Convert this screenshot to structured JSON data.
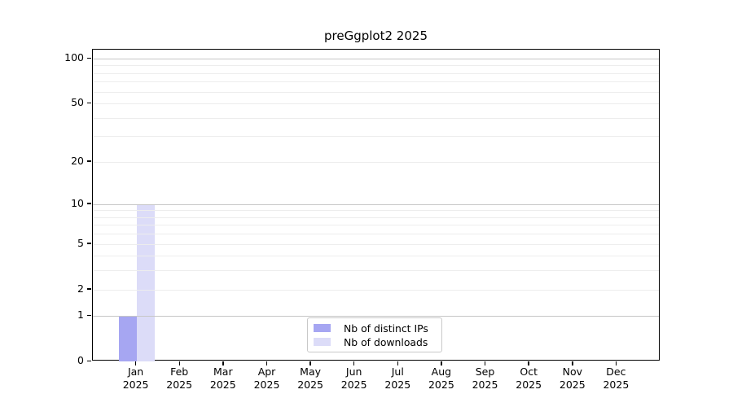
{
  "chart_data": {
    "type": "bar",
    "title": "preGgplot2 2025",
    "categories": [
      "Jan 2025",
      "Feb 2025",
      "Mar 2025",
      "Apr 2025",
      "May 2025",
      "Jun 2025",
      "Jul 2025",
      "Aug 2025",
      "Sep 2025",
      "Oct 2025",
      "Nov 2025",
      "Dec 2025"
    ],
    "series": [
      {
        "name": "Nb of distinct IPs",
        "color": "#a6a6f2",
        "values": [
          1,
          0,
          0,
          0,
          0,
          0,
          0,
          0,
          0,
          0,
          0,
          0
        ]
      },
      {
        "name": "Nb of downloads",
        "color": "#dcdcf8",
        "values": [
          10,
          0,
          0,
          0,
          0,
          0,
          0,
          0,
          0,
          0,
          0,
          0
        ]
      }
    ],
    "xlabel": "",
    "ylabel": "",
    "yticks": [
      0,
      1,
      2,
      5,
      10,
      20,
      50,
      100
    ],
    "ylim": [
      0,
      115
    ],
    "scale": "log1p",
    "grid": true,
    "gridlines": {
      "major": [
        1,
        10,
        100
      ],
      "minor": [
        2,
        3,
        4,
        5,
        6,
        7,
        8,
        9,
        20,
        30,
        40,
        50,
        60,
        70,
        80,
        90
      ]
    },
    "legend_position": "lower center"
  },
  "colors": {
    "background": "#ffffff",
    "spine": "#000000",
    "grid_major": "#c6c6c6",
    "grid_minor": "#ededed",
    "legend_border": "#c9c9c9",
    "text": "#000000"
  }
}
